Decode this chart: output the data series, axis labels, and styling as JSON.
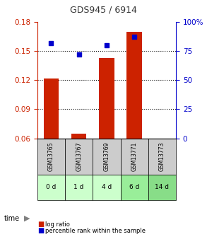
{
  "title": "GDS945 / 6914",
  "samples": [
    "GSM13765",
    "GSM13767",
    "GSM13769",
    "GSM13771",
    "GSM13773"
  ],
  "time_labels": [
    "0 d",
    "1 d",
    "4 d",
    "6 d",
    "14 d"
  ],
  "log_ratio": [
    0.122,
    0.065,
    0.143,
    0.17,
    0.06
  ],
  "percentile": [
    82,
    72,
    80,
    87,
    null
  ],
  "bar_baseline": 0.06,
  "ylim_left": [
    0.06,
    0.18
  ],
  "ylim_right": [
    0,
    100
  ],
  "yticks_left": [
    0.06,
    0.09,
    0.12,
    0.15,
    0.18
  ],
  "yticks_right": [
    0,
    25,
    50,
    75,
    100
  ],
  "ytick_labels_right": [
    "0",
    "25",
    "50",
    "75",
    "100%"
  ],
  "bar_color": "#cc2200",
  "dot_color": "#0000cc",
  "grid_color": "#000000",
  "sample_bg_color": "#cccccc",
  "time_bg_colors": [
    "#ccffcc",
    "#ccffcc",
    "#ccffcc",
    "#99ee99",
    "#88dd88"
  ],
  "time_label_color": "#000000",
  "title_color": "#333333",
  "left_tick_color": "#cc2200",
  "right_tick_color": "#0000cc",
  "legend_bar_label": "log ratio",
  "legend_dot_label": "percentile rank within the sample",
  "time_arrow_label": "time"
}
